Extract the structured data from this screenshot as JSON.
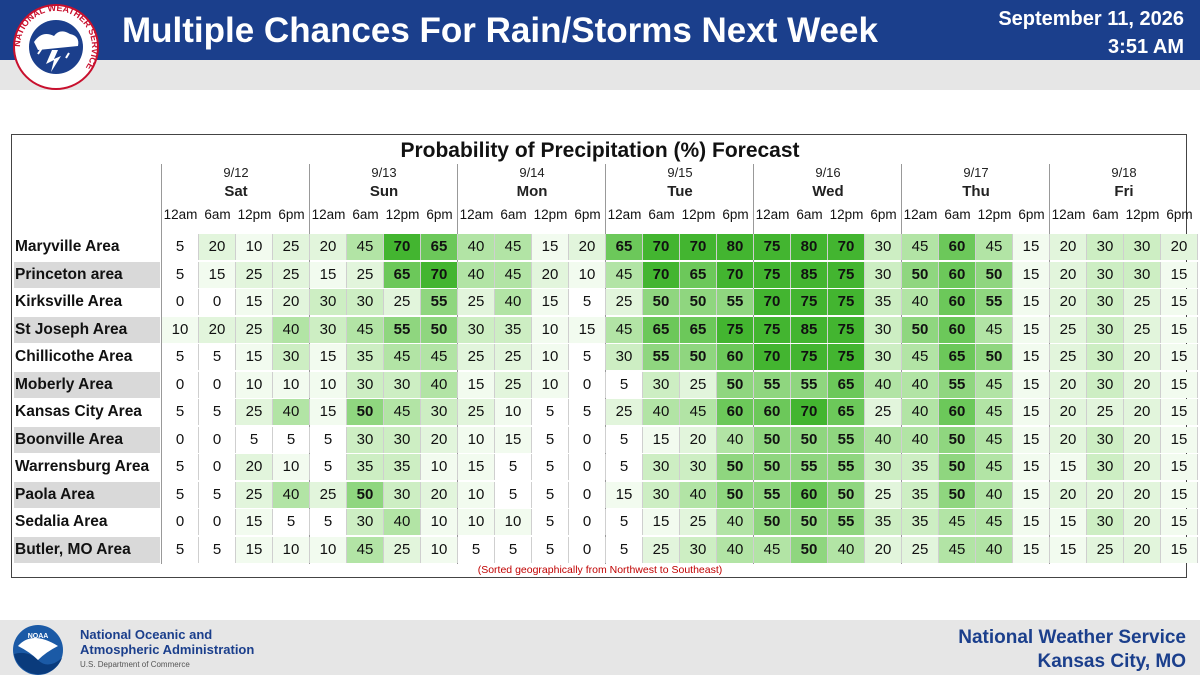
{
  "header": {
    "title": "Multiple Chances For Rain/Storms Next Week",
    "date": "September 11, 2026",
    "time": "3:51 AM",
    "logo_text": "NATIONAL WEATHER SERVICE"
  },
  "table": {
    "title": "Probability of Precipitation (%) Forecast",
    "note": "(Sorted geographically from Northwest to Southeast)",
    "hours": [
      "12am",
      "6am",
      "12pm",
      "6pm"
    ],
    "days": [
      {
        "date": "9/12",
        "day": "Sat"
      },
      {
        "date": "9/13",
        "day": "Sun"
      },
      {
        "date": "9/14",
        "day": "Mon"
      },
      {
        "date": "9/15",
        "day": "Tue"
      },
      {
        "date": "9/16",
        "day": "Wed"
      },
      {
        "date": "9/17",
        "day": "Thu"
      },
      {
        "date": "9/18",
        "day": "Fri"
      }
    ],
    "rows": [
      {
        "name": "Maryville Area",
        "values": [
          5,
          20,
          10,
          25,
          20,
          45,
          70,
          65,
          40,
          45,
          15,
          20,
          65,
          70,
          70,
          80,
          75,
          80,
          70,
          30,
          45,
          60,
          45,
          15,
          20,
          30,
          30,
          20
        ]
      },
      {
        "name": "Princeton area",
        "values": [
          5,
          15,
          25,
          25,
          15,
          25,
          65,
          70,
          40,
          45,
          20,
          10,
          45,
          70,
          65,
          70,
          75,
          85,
          75,
          30,
          50,
          60,
          50,
          15,
          20,
          30,
          30,
          15
        ]
      },
      {
        "name": "Kirksville Area",
        "values": [
          0,
          0,
          15,
          20,
          30,
          30,
          25,
          55,
          25,
          40,
          15,
          5,
          25,
          50,
          50,
          55,
          70,
          75,
          75,
          35,
          40,
          60,
          55,
          15,
          20,
          30,
          25,
          15
        ]
      },
      {
        "name": "St Joseph Area",
        "values": [
          10,
          20,
          25,
          40,
          30,
          45,
          55,
          50,
          30,
          35,
          10,
          15,
          45,
          65,
          65,
          75,
          75,
          85,
          75,
          30,
          50,
          60,
          45,
          15,
          25,
          30,
          25,
          15
        ]
      },
      {
        "name": "Chillicothe Area",
        "values": [
          5,
          5,
          15,
          30,
          15,
          35,
          45,
          45,
          25,
          25,
          10,
          5,
          30,
          55,
          50,
          60,
          70,
          75,
          75,
          30,
          45,
          65,
          50,
          15,
          25,
          30,
          20,
          15
        ]
      },
      {
        "name": "Moberly Area",
        "values": [
          0,
          0,
          10,
          10,
          10,
          30,
          30,
          40,
          15,
          25,
          10,
          0,
          5,
          30,
          25,
          50,
          55,
          55,
          65,
          40,
          40,
          55,
          45,
          15,
          20,
          30,
          20,
          15
        ]
      },
      {
        "name": "Kansas City Area",
        "values": [
          5,
          5,
          25,
          40,
          15,
          50,
          45,
          30,
          25,
          10,
          5,
          5,
          25,
          40,
          45,
          60,
          60,
          70,
          65,
          25,
          40,
          60,
          45,
          15,
          20,
          25,
          20,
          15
        ]
      },
      {
        "name": "Boonville Area",
        "values": [
          0,
          0,
          5,
          5,
          5,
          30,
          30,
          20,
          10,
          15,
          5,
          0,
          5,
          15,
          20,
          40,
          50,
          50,
          55,
          40,
          40,
          50,
          45,
          15,
          20,
          30,
          20,
          15
        ]
      },
      {
        "name": "Warrensburg Area",
        "values": [
          5,
          0,
          20,
          10,
          5,
          35,
          35,
          10,
          15,
          5,
          5,
          0,
          5,
          30,
          30,
          50,
          50,
          55,
          55,
          30,
          35,
          50,
          45,
          15,
          15,
          30,
          20,
          15
        ]
      },
      {
        "name": "Paola Area",
        "values": [
          5,
          5,
          25,
          40,
          25,
          50,
          30,
          20,
          10,
          5,
          5,
          0,
          15,
          30,
          40,
          50,
          55,
          60,
          50,
          25,
          35,
          50,
          40,
          15,
          20,
          20,
          20,
          15
        ]
      },
      {
        "name": "Sedalia Area",
        "values": [
          0,
          0,
          15,
          5,
          5,
          30,
          40,
          10,
          10,
          10,
          5,
          0,
          5,
          15,
          25,
          40,
          50,
          50,
          55,
          35,
          35,
          45,
          45,
          15,
          15,
          30,
          20,
          15
        ]
      },
      {
        "name": "Butler, MO Area",
        "values": [
          5,
          5,
          15,
          10,
          10,
          45,
          25,
          10,
          5,
          5,
          5,
          0,
          5,
          25,
          30,
          40,
          45,
          50,
          40,
          20,
          25,
          45,
          40,
          15,
          15,
          25,
          20,
          15
        ]
      }
    ]
  },
  "footer": {
    "agency_line1": "National Oceanic and",
    "agency_line2": "Atmospheric Administration",
    "department": "U.S. Department of Commerce",
    "noaa_logo_text": "NOAA",
    "office_line1": "National Weather Service",
    "office_line2": "Kansas City, MO"
  },
  "colors": {
    "header_bg": "#1b3f8c",
    "note_red": "#c00000"
  }
}
